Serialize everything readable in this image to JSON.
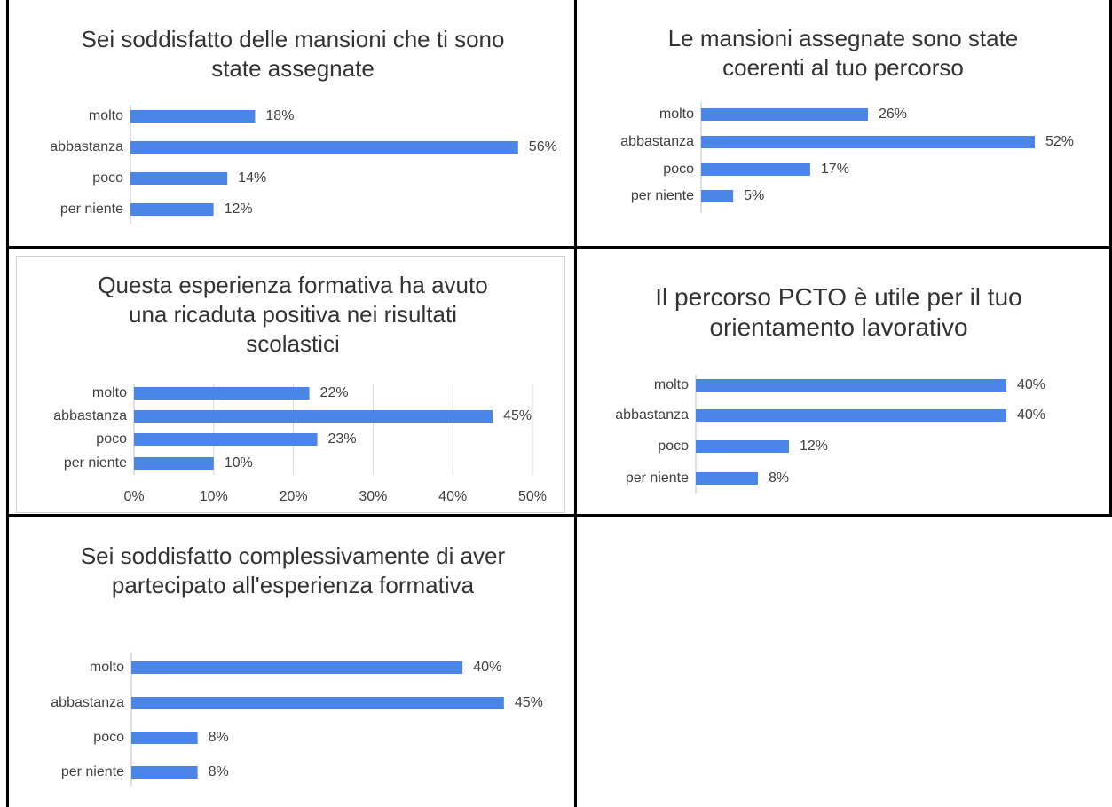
{
  "chart_data": [
    {
      "type": "bar",
      "orientation": "horizontal",
      "title": "Sei soddisfatto delle mansioni che ti sono state assegnate",
      "categories": [
        "molto",
        "abbastanza",
        "poco",
        "per niente"
      ],
      "values": [
        18,
        56,
        14,
        12
      ],
      "value_labels": [
        "18%",
        "56%",
        "14%",
        "12%"
      ],
      "color": "#4a86e8"
    },
    {
      "type": "bar",
      "orientation": "horizontal",
      "title": "Le mansioni assegnate sono state coerenti al tuo percorso",
      "categories": [
        "molto",
        "abbastanza",
        "poco",
        "per niente"
      ],
      "values": [
        26,
        52,
        17,
        5
      ],
      "value_labels": [
        "26%",
        "52%",
        "17%",
        "5%"
      ],
      "color": "#4a86e8"
    },
    {
      "type": "bar",
      "orientation": "horizontal",
      "title": "Questa esperienza formativa ha avuto una ricaduta positiva nei risultati scolastici",
      "categories": [
        "molto",
        "abbastanza",
        "poco",
        "per niente"
      ],
      "values": [
        22,
        45,
        23,
        10
      ],
      "value_labels": [
        "22%",
        "45%",
        "23%",
        "10%"
      ],
      "color": "#4a86e8",
      "xlim": [
        0,
        50
      ],
      "xticks": [
        {
          "value": 0,
          "label": "0%"
        },
        {
          "value": 10,
          "label": "10%"
        },
        {
          "value": 20,
          "label": "20%"
        },
        {
          "value": 30,
          "label": "30%"
        },
        {
          "value": 40,
          "label": "40%"
        },
        {
          "value": 50,
          "label": "50%"
        }
      ],
      "grid": true
    },
    {
      "type": "bar",
      "orientation": "horizontal",
      "title": "Il percorso PCTO è utile per il tuo orientamento lavorativo",
      "categories": [
        "molto",
        "abbastanza",
        "poco",
        "per niente"
      ],
      "values": [
        40,
        40,
        12,
        8
      ],
      "value_labels": [
        "40%",
        "40%",
        "12%",
        "8%"
      ],
      "color": "#4a86e8"
    },
    {
      "type": "bar",
      "orientation": "horizontal",
      "title": "Sei soddisfatto complessivamente di aver partecipato all'esperienza formativa",
      "categories": [
        "molto",
        "abbastanza",
        "poco",
        "per niente"
      ],
      "values": [
        40,
        45,
        8,
        8
      ],
      "value_labels": [
        "40%",
        "45%",
        "8%",
        "8%"
      ],
      "color": "#4a86e8"
    }
  ]
}
